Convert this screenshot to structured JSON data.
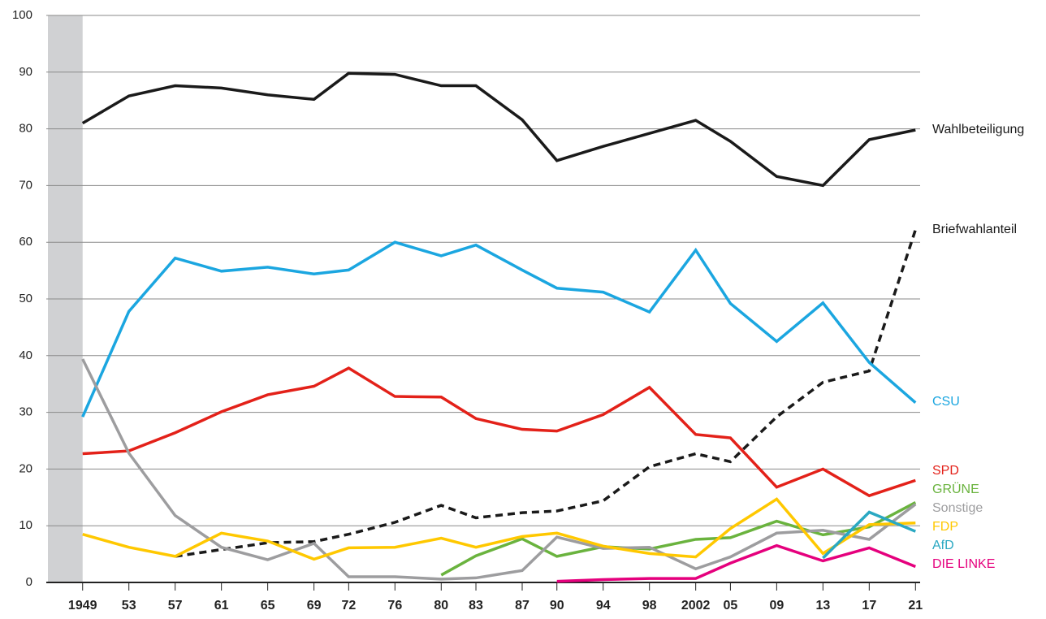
{
  "chart_data": {
    "type": "line",
    "x": [
      1949,
      1953,
      1957,
      1961,
      1965,
      1969,
      1972,
      1976,
      1980,
      1983,
      1987,
      1990,
      1994,
      1998,
      2002,
      2005,
      2009,
      2013,
      2017,
      2021
    ],
    "xlim": [
      1946,
      2021.4
    ],
    "xticks": [
      {
        "value": 1949,
        "label": "1949"
      },
      {
        "value": 1953,
        "label": "53"
      },
      {
        "value": 1957,
        "label": "57"
      },
      {
        "value": 1961,
        "label": "61"
      },
      {
        "value": 1965,
        "label": "65"
      },
      {
        "value": 1969,
        "label": "69"
      },
      {
        "value": 1972,
        "label": "72"
      },
      {
        "value": 1976,
        "label": "76"
      },
      {
        "value": 1980,
        "label": "80"
      },
      {
        "value": 1983,
        "label": "83"
      },
      {
        "value": 1987,
        "label": "87"
      },
      {
        "value": 1990,
        "label": "90"
      },
      {
        "value": 1994,
        "label": "94"
      },
      {
        "value": 1998,
        "label": "98"
      },
      {
        "value": 2002,
        "label": "2002"
      },
      {
        "value": 2005,
        "label": "05"
      },
      {
        "value": 2009,
        "label": "09"
      },
      {
        "value": 2013,
        "label": "13"
      },
      {
        "value": 2017,
        "label": "17"
      },
      {
        "value": 2021,
        "label": "21"
      }
    ],
    "ylim": [
      0,
      100
    ],
    "yticks": [
      0,
      10,
      20,
      30,
      40,
      50,
      60,
      70,
      80,
      90,
      100
    ],
    "grid": true,
    "shaded_xrange": [
      1946,
      1949
    ],
    "shade_color": "#d0d1d3",
    "series": [
      {
        "name": "Wahlbeteiligung",
        "color": "#1a1a1a",
        "line_style": "solid",
        "values": [
          81.0,
          85.8,
          87.6,
          87.2,
          86.0,
          85.2,
          89.8,
          89.6,
          87.6,
          87.6,
          81.6,
          74.4,
          76.9,
          79.2,
          81.5,
          77.8,
          71.6,
          70.0,
          78.1,
          79.8
        ]
      },
      {
        "name": "Briefwahlanteil",
        "color": "#1a1a1a",
        "line_style": "dashed",
        "values": [
          null,
          null,
          4.6,
          5.8,
          7.0,
          7.2,
          8.5,
          10.6,
          13.6,
          11.4,
          12.3,
          12.6,
          14.4,
          20.4,
          22.7,
          21.3,
          29.2,
          35.3,
          37.3,
          62.2
        ]
      },
      {
        "name": "CSU",
        "color": "#1ba6e0",
        "line_style": "solid",
        "values": [
          29.2,
          47.8,
          57.2,
          54.9,
          55.6,
          54.4,
          55.1,
          60.0,
          57.6,
          59.5,
          55.1,
          51.9,
          51.2,
          47.7,
          58.6,
          49.2,
          42.5,
          49.3,
          38.8,
          31.7
        ]
      },
      {
        "name": "SPD",
        "color": "#e32119",
        "line_style": "solid",
        "values": [
          22.7,
          23.2,
          26.4,
          30.1,
          33.1,
          34.6,
          37.8,
          32.8,
          32.7,
          28.9,
          27.0,
          26.7,
          29.6,
          34.4,
          26.1,
          25.5,
          16.8,
          20.0,
          15.3,
          18.0
        ]
      },
      {
        "name": "GRÜNE",
        "color": "#6ab33e",
        "line_style": "solid",
        "values": [
          null,
          null,
          null,
          null,
          null,
          null,
          null,
          null,
          1.3,
          4.7,
          7.7,
          4.6,
          6.3,
          5.9,
          7.6,
          7.9,
          10.8,
          8.4,
          9.8,
          14.1
        ]
      },
      {
        "name": "Sonstige",
        "color": "#9d9d9f",
        "line_style": "solid",
        "values": [
          39.4,
          22.8,
          11.8,
          6.2,
          4.0,
          6.9,
          1.0,
          1.0,
          0.6,
          0.8,
          2.1,
          8.0,
          6.0,
          6.2,
          2.4,
          4.5,
          8.7,
          9.2,
          7.6,
          13.8
        ]
      },
      {
        "name": "FDP",
        "color": "#ffc800",
        "line_style": "solid",
        "values": [
          8.5,
          6.2,
          4.6,
          8.7,
          7.3,
          4.1,
          6.1,
          6.2,
          7.8,
          6.2,
          8.1,
          8.7,
          6.4,
          5.1,
          4.5,
          9.5,
          14.7,
          5.1,
          10.2,
          10.5
        ]
      },
      {
        "name": "AfD",
        "color": "#2aa8c2",
        "line_style": "solid",
        "values": [
          null,
          null,
          null,
          null,
          null,
          null,
          null,
          null,
          null,
          null,
          null,
          null,
          null,
          null,
          null,
          null,
          null,
          4.3,
          12.4,
          9.0
        ]
      },
      {
        "name": "DIE LINKE",
        "color": "#e5007d",
        "line_style": "solid",
        "values": [
          null,
          null,
          null,
          null,
          null,
          null,
          null,
          null,
          null,
          null,
          null,
          0.2,
          0.5,
          0.7,
          0.7,
          3.4,
          6.5,
          3.8,
          6.1,
          2.8
        ]
      }
    ]
  }
}
